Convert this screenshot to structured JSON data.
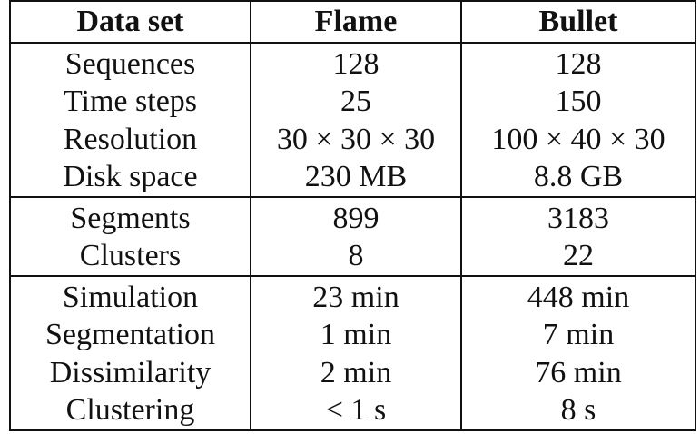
{
  "table": {
    "headers": [
      "Data set",
      "Flame",
      "Bullet"
    ],
    "groups": [
      [
        [
          "Sequences",
          "128",
          "128"
        ],
        [
          "Time steps",
          "25",
          "150"
        ],
        [
          "Resolution",
          "30 × 30 × 30",
          "100 × 40 × 30"
        ],
        [
          "Disk space",
          "230 MB",
          "8.8 GB"
        ]
      ],
      [
        [
          "Segments",
          "899",
          "3183"
        ],
        [
          "Clusters",
          "8",
          "22"
        ]
      ],
      [
        [
          "Simulation",
          "23 min",
          "448 min"
        ],
        [
          "Segmentation",
          "1 min",
          "7 min"
        ],
        [
          "Dissimilarity",
          "2 min",
          "76 min"
        ],
        [
          "Clustering",
          "< 1 s",
          "8 s"
        ]
      ]
    ]
  }
}
